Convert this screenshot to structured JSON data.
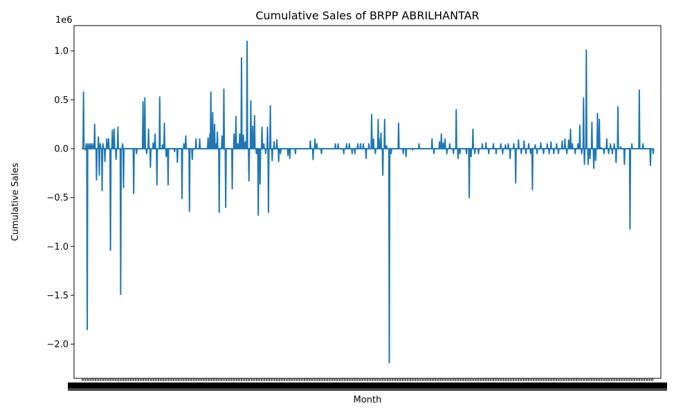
{
  "chart_data": {
    "type": "line",
    "title": "Cumulative Sales of BRPP ABRILHANTAR",
    "xlabel": "Month",
    "ylabel": "Cumulative Sales",
    "y_offset_text": "1e6",
    "y_multiplier": 1000000,
    "ylim": [
      -2.35,
      1.26
    ],
    "y_ticks": [
      -2.0,
      -1.5,
      -1.0,
      -0.5,
      0.0,
      0.5,
      1.0
    ],
    "y_tick_labels": [
      "−2.0",
      "−1.5",
      "−1.0",
      "−0.5",
      "0.0",
      "0.5",
      "1.0"
    ],
    "x_tick_labels_note": "dense overlapping month labels (unreadable)",
    "x_count": 600,
    "grid": false,
    "legend": "none",
    "colors": {
      "series_main": "#1f77b4",
      "series_secondary": "#ff7f0e"
    },
    "series": [
      {
        "color": "#1f77b4",
        "spikes": [
          [
            2,
            0.58
          ],
          [
            4,
            -0.01
          ],
          [
            5,
            0.05
          ],
          [
            6,
            -1.85
          ],
          [
            7,
            0.05
          ],
          [
            9,
            0.05
          ],
          [
            11,
            0.05
          ],
          [
            13,
            0.05
          ],
          [
            14,
            0.25
          ],
          [
            16,
            -0.32
          ],
          [
            18,
            0.12
          ],
          [
            19,
            -0.27
          ],
          [
            20,
            0.05
          ],
          [
            22,
            -0.43
          ],
          [
            23,
            0.05
          ],
          [
            25,
            -0.13
          ],
          [
            27,
            0.1
          ],
          [
            29,
            0.1
          ],
          [
            31,
            -1.04
          ],
          [
            33,
            0.19
          ],
          [
            35,
            0.2
          ],
          [
            37,
            -0.11
          ],
          [
            39,
            0.22
          ],
          [
            42,
            -1.49
          ],
          [
            44,
            0.05
          ],
          [
            45,
            -0.4
          ],
          [
            56,
            -0.46
          ],
          [
            59,
            -0.05
          ],
          [
            66,
            0.48
          ],
          [
            68,
            0.52
          ],
          [
            70,
            -0.05
          ],
          [
            72,
            0.2
          ],
          [
            74,
            -0.19
          ],
          [
            77,
            0.06
          ],
          [
            79,
            0.15
          ],
          [
            81,
            -0.37
          ],
          [
            84,
            0.53
          ],
          [
            87,
            0.04
          ],
          [
            89,
            0.26
          ],
          [
            91,
            -0.08
          ],
          [
            93,
            -0.37
          ],
          [
            100,
            -0.03
          ],
          [
            103,
            -0.14
          ],
          [
            108,
            -0.51
          ],
          [
            110,
            0.05
          ],
          [
            112,
            0.13
          ],
          [
            116,
            -0.64
          ],
          [
            119,
            -0.11
          ],
          [
            123,
            0.1
          ],
          [
            127,
            0.1
          ],
          [
            136,
            0.11
          ],
          [
            138,
            0.15
          ],
          [
            139,
            0.58
          ],
          [
            141,
            0.37
          ],
          [
            143,
            0.25
          ],
          [
            145,
            0.05
          ],
          [
            146,
            0.17
          ],
          [
            148,
            -0.65
          ],
          [
            151,
            0.13
          ],
          [
            153,
            0.61
          ],
          [
            155,
            -0.6
          ],
          [
            162,
            -0.41
          ],
          [
            164,
            0.15
          ],
          [
            166,
            0.33
          ],
          [
            168,
            0.05
          ],
          [
            170,
            0.15
          ],
          [
            172,
            0.93
          ],
          [
            174,
            0.14
          ],
          [
            176,
            0.07
          ],
          [
            178,
            1.1
          ],
          [
            180,
            -0.33
          ],
          [
            182,
            0.49
          ],
          [
            184,
            0.23
          ],
          [
            186,
            0.34
          ],
          [
            188,
            -0.05
          ],
          [
            190,
            -0.68
          ],
          [
            192,
            -0.36
          ],
          [
            194,
            0.22
          ],
          [
            196,
            0.05
          ],
          [
            198,
            -0.05
          ],
          [
            200,
            0.22
          ],
          [
            201,
            -0.65
          ],
          [
            203,
            0.44
          ],
          [
            205,
            -0.12
          ],
          [
            207,
            0.07
          ],
          [
            210,
            0.09
          ],
          [
            212,
            -0.13
          ],
          [
            214,
            -0.05
          ],
          [
            222,
            -0.07
          ],
          [
            224,
            -0.1
          ],
          [
            230,
            -0.05
          ],
          [
            246,
            0.08
          ],
          [
            249,
            -0.11
          ],
          [
            251,
            0.1
          ],
          [
            253,
            0.05
          ],
          [
            258,
            -0.05
          ],
          [
            273,
            0.05
          ],
          [
            276,
            0.05
          ],
          [
            282,
            -0.05
          ],
          [
            285,
            0.05
          ],
          [
            288,
            0.05
          ],
          [
            291,
            -0.05
          ],
          [
            294,
            -0.05
          ],
          [
            297,
            0.05
          ],
          [
            300,
            0.05
          ],
          [
            303,
            0.05
          ],
          [
            306,
            -0.1
          ],
          [
            309,
            0.05
          ],
          [
            312,
            0.35
          ],
          [
            314,
            0.1
          ],
          [
            316,
            -0.05
          ],
          [
            319,
            0.3
          ],
          [
            320,
            0.1
          ],
          [
            322,
            0.16
          ],
          [
            324,
            -0.27
          ],
          [
            326,
            0.3
          ],
          [
            328,
            0.03
          ],
          [
            331,
            -2.19
          ],
          [
            333,
            -0.05
          ],
          [
            341,
            0.26
          ],
          [
            346,
            -0.05
          ],
          [
            349,
            -0.08
          ],
          [
            356,
            -0.01
          ],
          [
            363,
            0.05
          ],
          [
            377,
            0.1
          ],
          [
            379,
            -0.05
          ],
          [
            385,
            0.07
          ],
          [
            387,
            0.15
          ],
          [
            389,
            0.06
          ],
          [
            391,
            0.1
          ],
          [
            393,
            -0.05
          ],
          [
            396,
            0.05
          ],
          [
            400,
            -0.05
          ],
          [
            403,
            0.4
          ],
          [
            405,
            -0.1
          ],
          [
            407,
            -0.05
          ],
          [
            414,
            -0.05
          ],
          [
            417,
            -0.5
          ],
          [
            419,
            -0.08
          ],
          [
            421,
            0.2
          ],
          [
            423,
            -0.05
          ],
          [
            427,
            -0.05
          ],
          [
            431,
            0.05
          ],
          [
            435,
            0.06
          ],
          [
            438,
            -0.05
          ],
          [
            443,
            0.05
          ],
          [
            446,
            -0.05
          ],
          [
            451,
            0.05
          ],
          [
            453,
            -0.05
          ],
          [
            456,
            0.04
          ],
          [
            459,
            0.05
          ],
          [
            461,
            -0.1
          ],
          [
            465,
            0.05
          ],
          [
            467,
            -0.35
          ],
          [
            470,
            0.09
          ],
          [
            473,
            -0.05
          ],
          [
            476,
            0.08
          ],
          [
            478,
            -0.05
          ],
          [
            481,
            0.05
          ],
          [
            483,
            -0.05
          ],
          [
            485,
            -0.42
          ],
          [
            488,
            0.04
          ],
          [
            490,
            -0.05
          ],
          [
            494,
            0.06
          ],
          [
            497,
            -0.05
          ],
          [
            501,
            0.05
          ],
          [
            503,
            -0.05
          ],
          [
            505,
            0.07
          ],
          [
            508,
            -0.05
          ],
          [
            511,
            0.05
          ],
          [
            513,
            -0.05
          ],
          [
            517,
            0.08
          ],
          [
            520,
            0.1
          ],
          [
            522,
            -0.05
          ],
          [
            524,
            0.09
          ],
          [
            526,
            0.2
          ],
          [
            528,
            0.05
          ],
          [
            531,
            -0.05
          ],
          [
            534,
            0.05
          ],
          [
            536,
            0.24
          ],
          [
            538,
            -0.05
          ],
          [
            540,
            0.52
          ],
          [
            541,
            -0.16
          ],
          [
            543,
            1.01
          ],
          [
            545,
            -0.16
          ],
          [
            547,
            -0.1
          ],
          [
            549,
            0.27
          ],
          [
            551,
            -0.2
          ],
          [
            553,
            -0.12
          ],
          [
            555,
            0.36
          ],
          [
            557,
            0.3
          ],
          [
            559,
            0.01
          ],
          [
            562,
            -0.05
          ],
          [
            565,
            0.1
          ],
          [
            567,
            -0.05
          ],
          [
            569,
            0.05
          ],
          [
            571,
            -0.05
          ],
          [
            573,
            0.05
          ],
          [
            575,
            -0.14
          ],
          [
            577,
            0.43
          ],
          [
            580,
            0.02
          ],
          [
            584,
            -0.16
          ],
          [
            590,
            -0.82
          ],
          [
            592,
            0.05
          ],
          [
            600,
            0.6
          ],
          [
            604,
            0.05
          ],
          [
            612,
            -0.17
          ],
          [
            615,
            -0.05
          ]
        ]
      },
      {
        "color": "#ff7f0e",
        "points": [
          [
            0,
            0.01
          ],
          [
            2,
            0.01
          ]
        ]
      }
    ]
  }
}
